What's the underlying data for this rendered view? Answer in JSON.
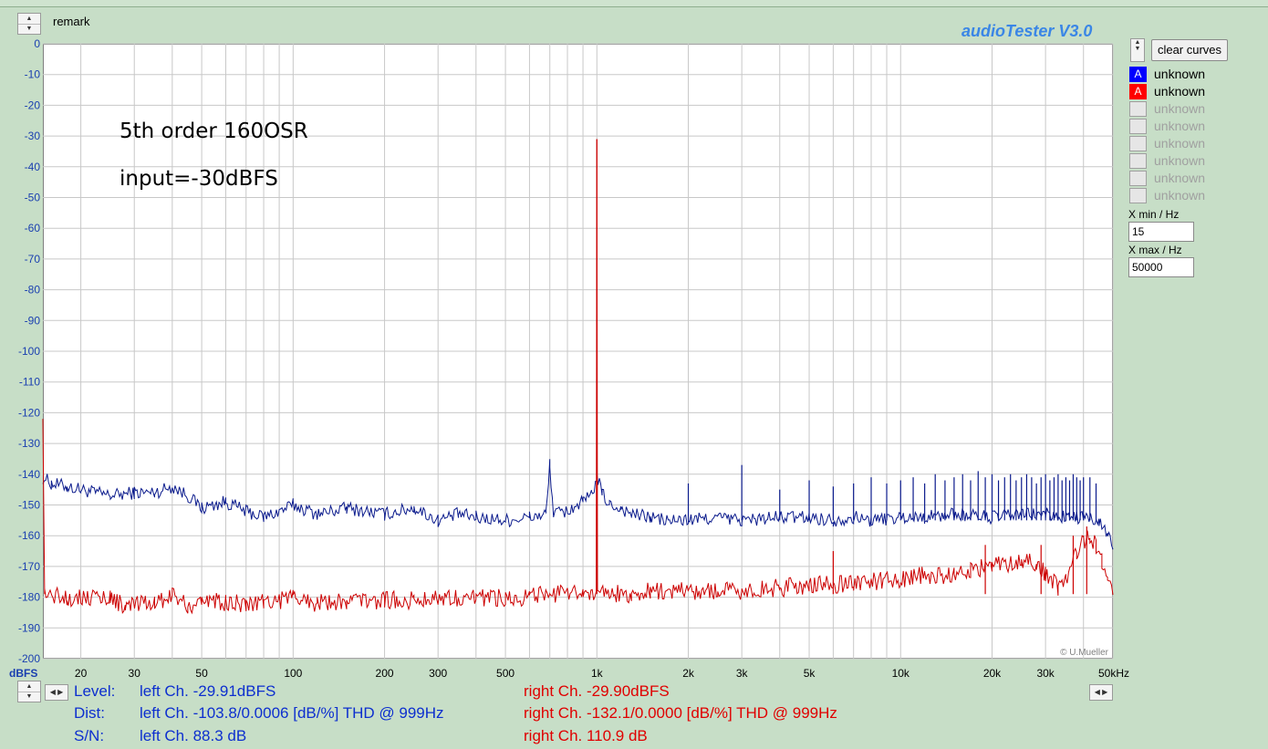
{
  "app": {
    "title": "audioTester  V3.0"
  },
  "remark": {
    "label": "remark"
  },
  "controls": {
    "clear_curves_label": "clear curves",
    "curves": [
      {
        "tag": "A",
        "label": "unknown",
        "color": "#0000ff",
        "active": true
      },
      {
        "tag": "A",
        "label": "unknown",
        "color": "#ff0000",
        "active": true
      },
      {
        "tag": "",
        "label": "unknown",
        "active": false
      },
      {
        "tag": "",
        "label": "unknown",
        "active": false
      },
      {
        "tag": "",
        "label": "unknown",
        "active": false
      },
      {
        "tag": "",
        "label": "unknown",
        "active": false
      },
      {
        "tag": "",
        "label": "unknown",
        "active": false
      },
      {
        "tag": "",
        "label": "unknown",
        "active": false
      }
    ],
    "xmin_label": "X min / Hz",
    "xmin_value": "15",
    "xmax_label": "X max / Hz",
    "xmax_value": "50000"
  },
  "chart_data": {
    "type": "line",
    "xscale": "log",
    "xlim": [
      15,
      50000
    ],
    "ylim": [
      -200,
      0
    ],
    "ylabel": "dBFS",
    "xlabel_unit": "kHz",
    "grid": true,
    "y_ticks": [
      "0",
      "-10",
      "-20",
      "-30",
      "-40",
      "-50",
      "-60",
      "-70",
      "-80",
      "-90",
      "-100",
      "-110",
      "-120",
      "-130",
      "-140",
      "-150",
      "-160",
      "-170",
      "-180",
      "-190",
      "-200"
    ],
    "x_ticks": [
      {
        "v": 20,
        "label": "20"
      },
      {
        "v": 30,
        "label": "30"
      },
      {
        "v": 50,
        "label": "50"
      },
      {
        "v": 100,
        "label": "100"
      },
      {
        "v": 200,
        "label": "200"
      },
      {
        "v": 300,
        "label": "300"
      },
      {
        "v": 500,
        "label": "500"
      },
      {
        "v": 1000,
        "label": "1k"
      },
      {
        "v": 2000,
        "label": "2k"
      },
      {
        "v": 3000,
        "label": "3k"
      },
      {
        "v": 5000,
        "label": "5k"
      },
      {
        "v": 10000,
        "label": "10k"
      },
      {
        "v": 20000,
        "label": "20k"
      },
      {
        "v": 30000,
        "label": "30k"
      },
      {
        "v": 50000,
        "label": "50kHz"
      }
    ],
    "annotations": [
      "5th order 160OSR",
      "input=-30dBFS"
    ],
    "copyright": "© U.Mueller",
    "series": [
      {
        "color": "#0a1a8c",
        "points": [
          [
            15,
            -141
          ],
          [
            16,
            -143
          ],
          [
            18,
            -144
          ],
          [
            20,
            -145
          ],
          [
            25,
            -147
          ],
          [
            30,
            -146
          ],
          [
            35,
            -146
          ],
          [
            40,
            -144
          ],
          [
            45,
            -147
          ],
          [
            50,
            -151
          ],
          [
            60,
            -149
          ],
          [
            70,
            -152
          ],
          [
            80,
            -154
          ],
          [
            90,
            -152
          ],
          [
            100,
            -150
          ],
          [
            120,
            -153
          ],
          [
            150,
            -151
          ],
          [
            200,
            -153
          ],
          [
            250,
            -151
          ],
          [
            300,
            -155
          ],
          [
            350,
            -153
          ],
          [
            400,
            -154
          ],
          [
            500,
            -155
          ],
          [
            600,
            -154
          ],
          [
            680,
            -153
          ],
          [
            700,
            -137
          ],
          [
            720,
            -153
          ],
          [
            800,
            -152
          ],
          [
            900,
            -149
          ],
          [
            960,
            -147
          ],
          [
            999,
            -141
          ],
          [
            1040,
            -146
          ],
          [
            1100,
            -150
          ],
          [
            1200,
            -151
          ],
          [
            1300,
            -153
          ],
          [
            1500,
            -154
          ],
          [
            1700,
            -155
          ],
          [
            2000,
            -155
          ],
          [
            2500,
            -154
          ],
          [
            3000,
            -155
          ],
          [
            4000,
            -154
          ],
          [
            5000,
            -154
          ],
          [
            6000,
            -155
          ],
          [
            7000,
            -154
          ],
          [
            8000,
            -155
          ],
          [
            10000,
            -154
          ],
          [
            12000,
            -154
          ],
          [
            15000,
            -153
          ],
          [
            20000,
            -154
          ],
          [
            25000,
            -153
          ],
          [
            30000,
            -153
          ],
          [
            35000,
            -154
          ],
          [
            40000,
            -154
          ],
          [
            45000,
            -156
          ],
          [
            48000,
            -159
          ],
          [
            50000,
            -164
          ]
        ],
        "spikes": [
          [
            1000,
            -88
          ],
          [
            2000,
            -143
          ],
          [
            3000,
            -137
          ],
          [
            4000,
            -145
          ],
          [
            5000,
            -142
          ],
          [
            6000,
            -144
          ],
          [
            7000,
            -143
          ],
          [
            8000,
            -141
          ],
          [
            9000,
            -143
          ],
          [
            10000,
            -142
          ],
          [
            11000,
            -141
          ],
          [
            12000,
            -143
          ],
          [
            13000,
            -140
          ],
          [
            14000,
            -142
          ],
          [
            15000,
            -141
          ],
          [
            16000,
            -140
          ],
          [
            17000,
            -142
          ],
          [
            18000,
            -139
          ],
          [
            19000,
            -141
          ],
          [
            20000,
            -140
          ],
          [
            21000,
            -142
          ],
          [
            22000,
            -141
          ],
          [
            23000,
            -140
          ],
          [
            24000,
            -142
          ],
          [
            25000,
            -141
          ],
          [
            26000,
            -140
          ],
          [
            27000,
            -141
          ],
          [
            28000,
            -143
          ],
          [
            29000,
            -141
          ],
          [
            30000,
            -140
          ],
          [
            31000,
            -142
          ],
          [
            32000,
            -141
          ],
          [
            33000,
            -140
          ],
          [
            34000,
            -142
          ],
          [
            35000,
            -141
          ],
          [
            36000,
            -142
          ],
          [
            37000,
            -140
          ],
          [
            38000,
            -141
          ],
          [
            39000,
            -142
          ],
          [
            40000,
            -141
          ],
          [
            42000,
            -141
          ],
          [
            44000,
            -143
          ]
        ]
      },
      {
        "color": "#cc0000",
        "points": [
          [
            15,
            -122
          ],
          [
            15.2,
            -179
          ],
          [
            18,
            -180
          ],
          [
            20,
            -180
          ],
          [
            25,
            -180
          ],
          [
            28,
            -183
          ],
          [
            35,
            -182
          ],
          [
            40,
            -179
          ],
          [
            45,
            -183
          ],
          [
            50,
            -181
          ],
          [
            60,
            -182
          ],
          [
            70,
            -182
          ],
          [
            80,
            -181
          ],
          [
            90,
            -181
          ],
          [
            100,
            -180
          ],
          [
            120,
            -182
          ],
          [
            150,
            -181
          ],
          [
            200,
            -181
          ],
          [
            250,
            -181
          ],
          [
            300,
            -180
          ],
          [
            400,
            -180
          ],
          [
            500,
            -180
          ],
          [
            600,
            -180
          ],
          [
            700,
            -179
          ],
          [
            800,
            -179
          ],
          [
            900,
            -179
          ],
          [
            995,
            -178
          ],
          [
            1000,
            -31
          ],
          [
            1005,
            -178
          ],
          [
            1100,
            -179
          ],
          [
            1300,
            -179
          ],
          [
            1500,
            -178
          ],
          [
            2000,
            -178
          ],
          [
            2500,
            -178
          ],
          [
            3000,
            -178
          ],
          [
            4000,
            -177
          ],
          [
            5000,
            -176
          ],
          [
            6000,
            -176
          ],
          [
            7000,
            -175
          ],
          [
            8000,
            -175
          ],
          [
            10000,
            -174
          ],
          [
            12000,
            -173
          ],
          [
            15000,
            -173
          ],
          [
            17000,
            -171
          ],
          [
            20000,
            -170
          ],
          [
            25000,
            -168
          ],
          [
            28000,
            -169
          ],
          [
            30000,
            -172
          ],
          [
            33000,
            -177
          ],
          [
            35000,
            -174
          ],
          [
            38000,
            -165
          ],
          [
            40000,
            -162
          ],
          [
            42000,
            -160
          ],
          [
            44000,
            -163
          ],
          [
            46000,
            -168
          ],
          [
            48000,
            -173
          ],
          [
            50000,
            -178
          ]
        ],
        "spikes": [
          [
            1000,
            -31
          ],
          [
            6000,
            -165
          ],
          [
            19000,
            -163
          ],
          [
            29000,
            -163
          ],
          [
            37000,
            -160
          ],
          [
            41000,
            -157
          ]
        ]
      }
    ]
  },
  "results": {
    "level": {
      "label": "Level:",
      "left": "left Ch. -29.91dBFS",
      "right": "right Ch. -29.90dBFS"
    },
    "dist": {
      "label": "Dist:",
      "left": "left Ch. -103.8/0.0006 [dB/%] THD @ 999Hz",
      "right": "right Ch. -132.1/0.0000 [dB/%] THD @ 999Hz"
    },
    "sn": {
      "label": "S/N:",
      "left": "left Ch. 88.3 dB",
      "right": "right Ch. 110.9 dB"
    }
  }
}
